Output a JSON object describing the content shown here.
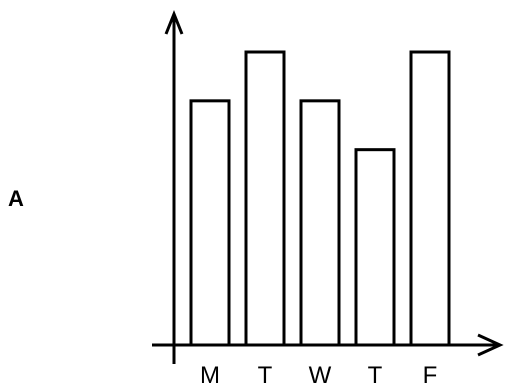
{
  "figure_label": "A",
  "chart_data": {
    "type": "bar",
    "categories": [
      "M",
      "T",
      "W",
      "T",
      "F"
    ],
    "values": [
      5,
      6,
      5,
      4,
      6
    ],
    "title": "",
    "xlabel": "",
    "ylabel": "",
    "ylim": [
      0,
      7
    ],
    "grid": false,
    "legend": "none",
    "bar_fill": "#ffffff",
    "bar_stroke": "#000000",
    "axis_color": "#000000"
  }
}
